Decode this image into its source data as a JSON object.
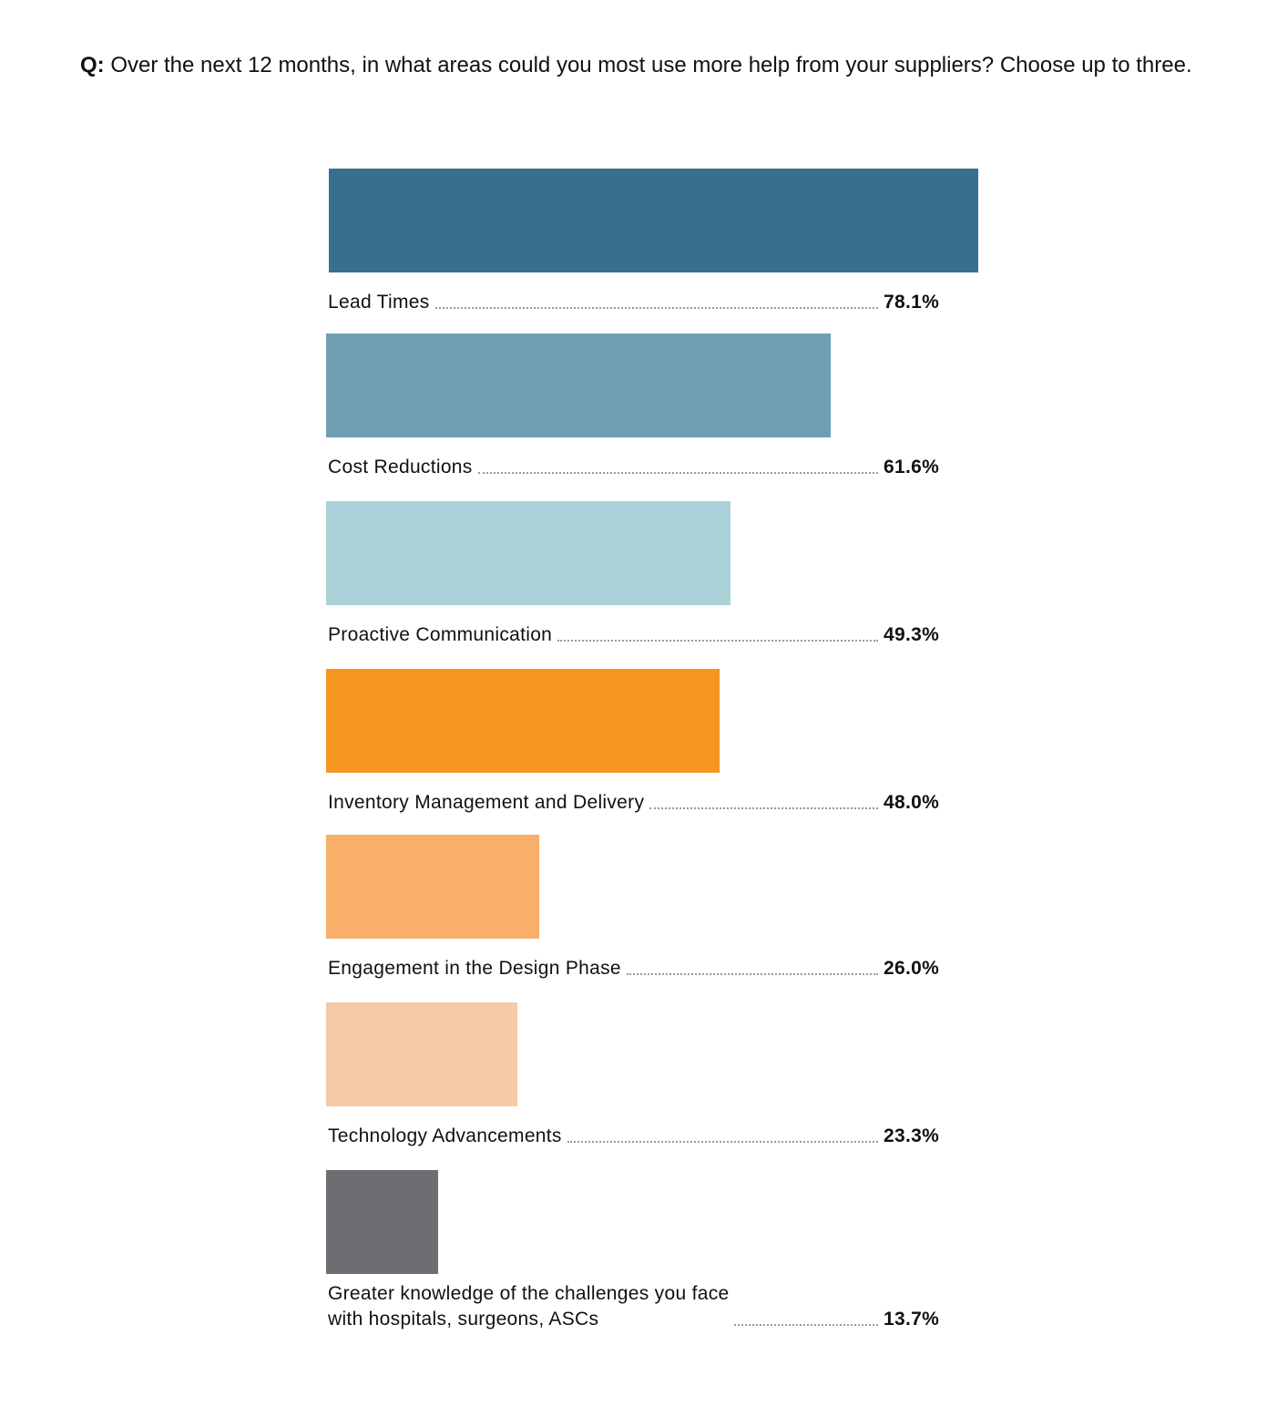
{
  "question": {
    "prefix": "Q:",
    "text": " Over the next 12 months, in what areas could you most use more help from your suppliers? Choose up to three."
  },
  "chart_data": {
    "type": "bar",
    "orientation": "horizontal",
    "categories": [
      "Lead Times",
      "Cost Reductions",
      "Proactive Communication",
      "Inventory Management and Delivery",
      "Engagement in the Design Phase",
      "Technology Advancements",
      "Greater knowledge of the challenges you face\nwith hospitals, surgeons, ASCs"
    ],
    "values": [
      78.1,
      61.6,
      49.3,
      48.0,
      26.0,
      23.3,
      13.7
    ],
    "value_labels": [
      "78.1%",
      "61.6%",
      "49.3%",
      "48.0%",
      "26.0%",
      "23.3%",
      "13.7%"
    ],
    "colors": [
      "#376f8f",
      "#709fb1",
      "#abd1d8",
      "#f6951f",
      "#f7af6a",
      "#f5caa4",
      "#6d6e71"
    ],
    "unit": "%",
    "grid": false,
    "legend": "none"
  }
}
